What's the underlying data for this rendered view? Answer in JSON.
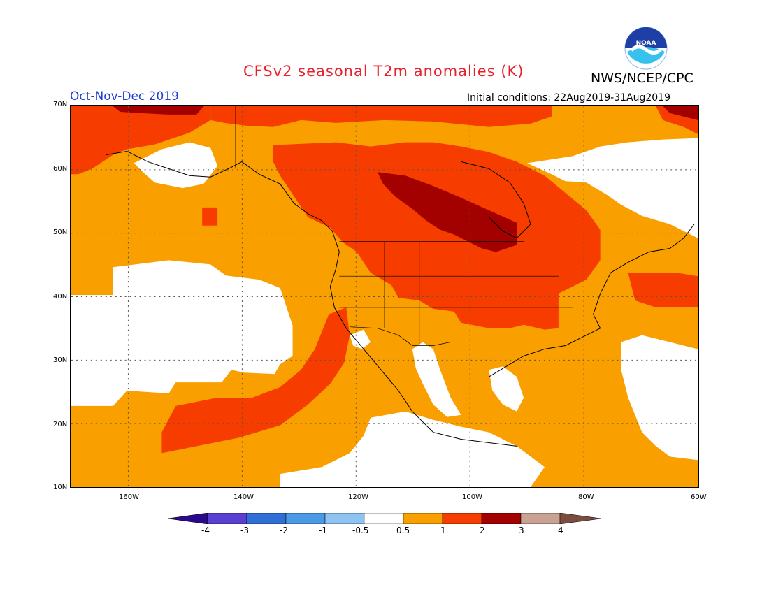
{
  "header": {
    "title": "CFSv2 seasonal T2m anomalies (K)",
    "agency": "NWS/NCEP/CPC",
    "logo_text": "NOAA",
    "period": "Oct-Nov-Dec 2019",
    "initial_conditions": "Initial conditions: 22Aug2019-31Aug2019"
  },
  "axes": {
    "lat_labels": [
      "70N",
      "60N",
      "50N",
      "40N",
      "30N",
      "20N",
      "10N"
    ],
    "lon_labels": [
      "160W",
      "140W",
      "120W",
      "100W",
      "80W",
      "60W"
    ],
    "lat_range": [
      10,
      70
    ],
    "lon_range": [
      -170,
      -60
    ],
    "grid": "dotted"
  },
  "colorbar": {
    "labels": [
      "-4",
      "-3",
      "-2",
      "-1",
      "-0.5",
      "0.5",
      "1",
      "2",
      "3",
      "4"
    ],
    "colors": [
      "#2a0a8a",
      "#5a3fd0",
      "#2f6fd6",
      "#4a9ae8",
      "#8fc4f2",
      "#ffffff",
      "#f99f00",
      "#f73c00",
      "#a30000",
      "#c9a293",
      "#7a4d3f"
    ]
  },
  "map_colors": {
    "white": "#ffffff",
    "orange": "#f99f00",
    "red_orange": "#f73c00",
    "dark_red": "#a30000",
    "coast": "#000000"
  }
}
